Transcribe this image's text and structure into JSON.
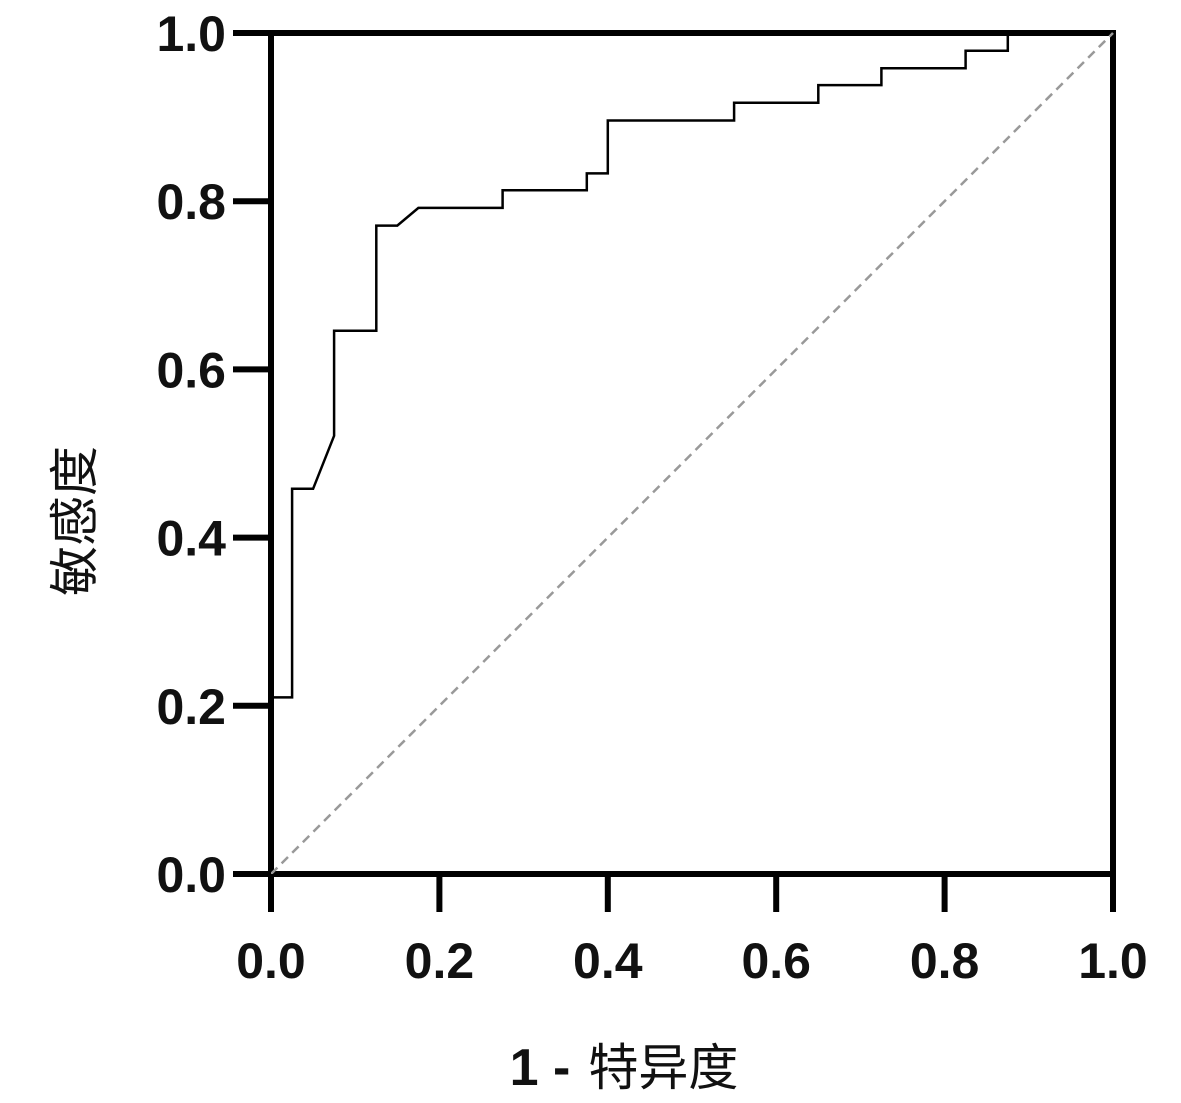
{
  "chart_data": {
    "type": "line",
    "title": "",
    "xlabel_prefix": "1 -",
    "xlabel_rest": "特异度",
    "ylabel": "敏感度",
    "xlim": [
      0,
      1
    ],
    "ylim": [
      0,
      1
    ],
    "x_ticks": [
      "0.0",
      "0.2",
      "0.4",
      "0.6",
      "0.8",
      "1.0"
    ],
    "y_ticks": [
      "0.0",
      "0.2",
      "0.4",
      "0.6",
      "0.8",
      "1.0"
    ],
    "x_tick_values": [
      0,
      0.2,
      0.4,
      0.6,
      0.8,
      1.0
    ],
    "y_tick_values": [
      0,
      0.2,
      0.4,
      0.6,
      0.8,
      1.0
    ],
    "grid": false,
    "series": [
      {
        "style": "solid",
        "color": "#000000",
        "points": [
          [
            0.0,
            0.21
          ],
          [
            0.025,
            0.21
          ],
          [
            0.025,
            0.458
          ],
          [
            0.05,
            0.458
          ],
          [
            0.075,
            0.521
          ],
          [
            0.075,
            0.646
          ],
          [
            0.125,
            0.646
          ],
          [
            0.125,
            0.771
          ],
          [
            0.15,
            0.771
          ],
          [
            0.175,
            0.792
          ],
          [
            0.275,
            0.792
          ],
          [
            0.275,
            0.813
          ],
          [
            0.375,
            0.813
          ],
          [
            0.375,
            0.833
          ],
          [
            0.4,
            0.833
          ],
          [
            0.4,
            0.896
          ],
          [
            0.55,
            0.896
          ],
          [
            0.55,
            0.917
          ],
          [
            0.65,
            0.917
          ],
          [
            0.65,
            0.938
          ],
          [
            0.725,
            0.938
          ],
          [
            0.725,
            0.958
          ],
          [
            0.825,
            0.958
          ],
          [
            0.825,
            0.979
          ],
          [
            0.875,
            0.979
          ],
          [
            0.875,
            1.0
          ]
        ]
      },
      {
        "style": "dashed",
        "color": "#999999",
        "points": [
          [
            0,
            0
          ],
          [
            1,
            1
          ]
        ]
      }
    ]
  }
}
